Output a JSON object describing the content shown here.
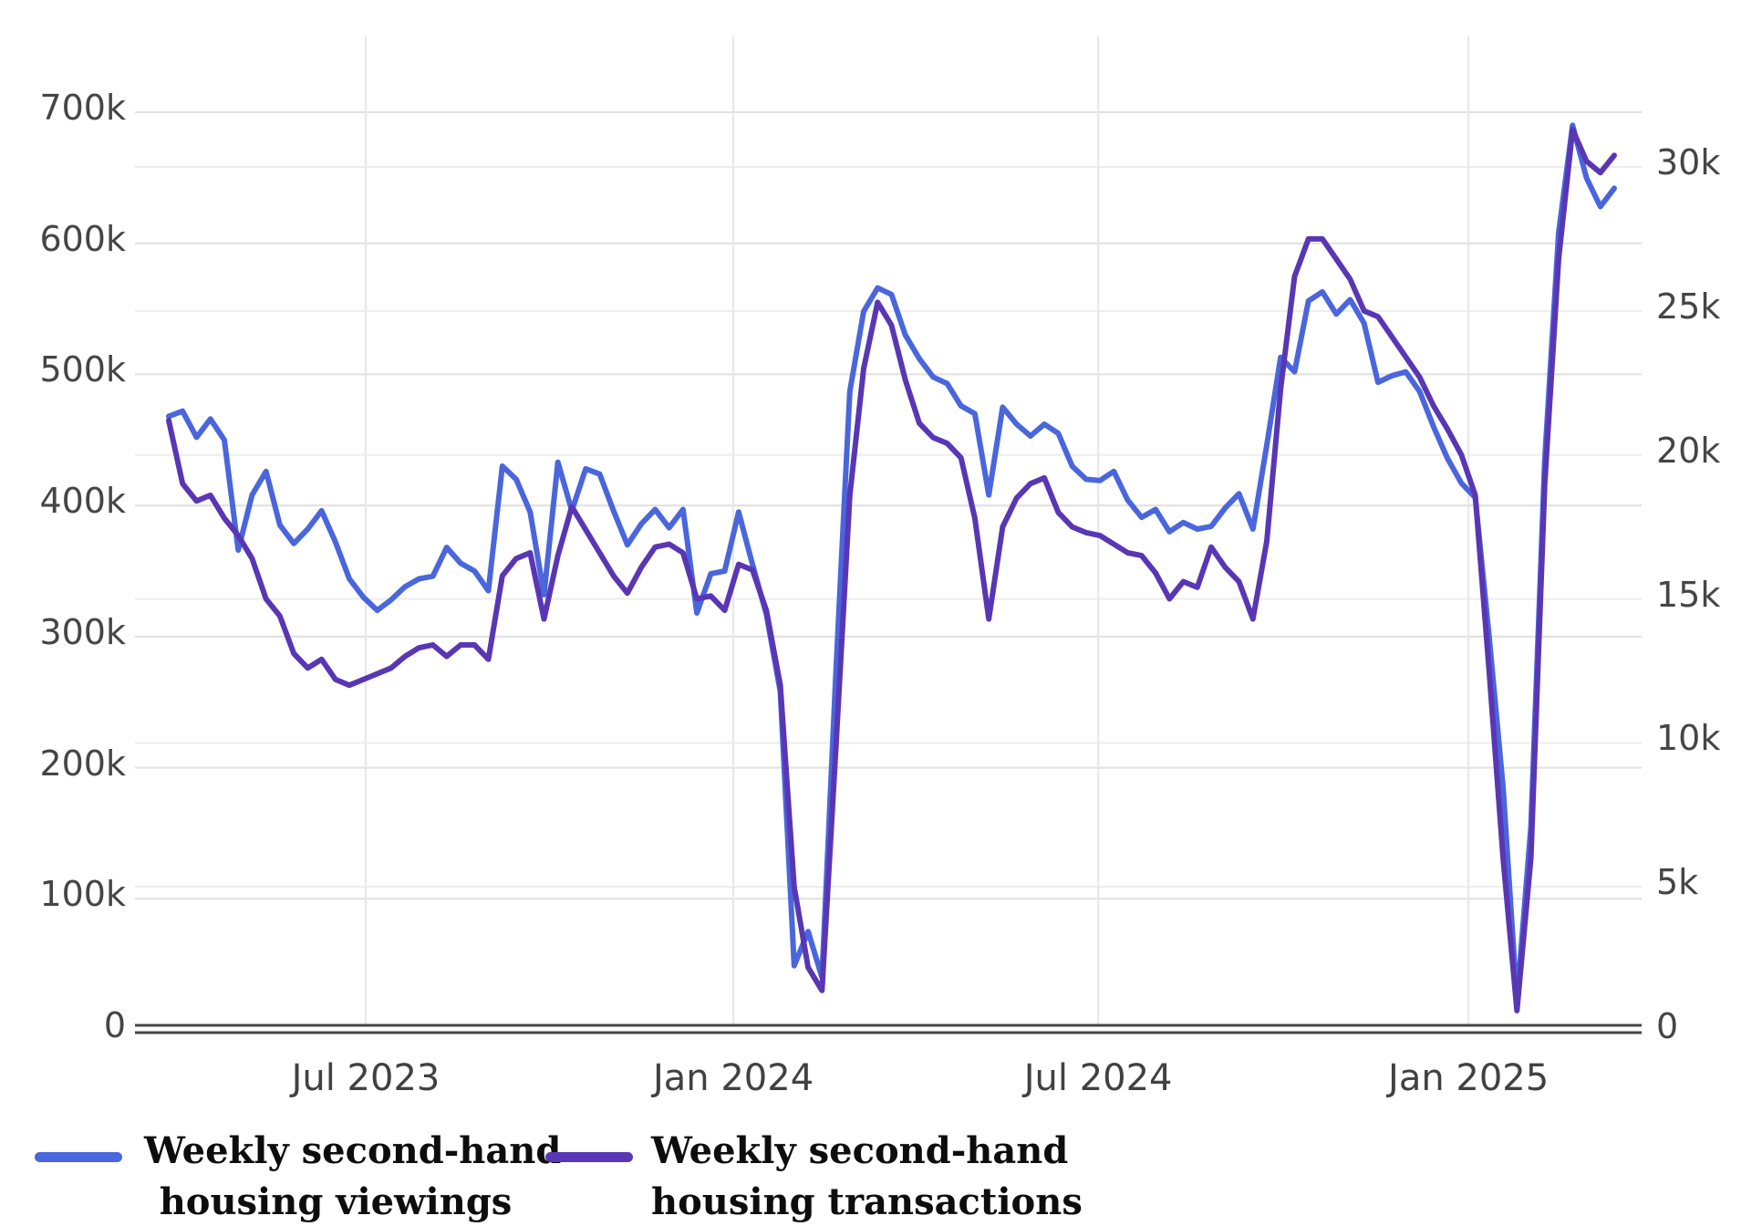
{
  "chart_data": {
    "type": "line",
    "title": "",
    "xlabel": "",
    "ylabel_left": "",
    "ylabel_right": "",
    "grid": true,
    "legend_position": "bottom",
    "x_unit": "week",
    "x_ticks": [
      {
        "label": "Jul 2023",
        "week": 14.17
      },
      {
        "label": "Jan 2024",
        "week": 40.62
      },
      {
        "label": "Jul 2024",
        "week": 66.87
      },
      {
        "label": "Jan 2025",
        "week": 93.51
      }
    ],
    "left_axis": {
      "min": 0,
      "max": 700000,
      "tick_labels": [
        "700k",
        "600k",
        "500k",
        "400k",
        "300k",
        "200k",
        "100k",
        "0"
      ],
      "tick_values": [
        700000,
        600000,
        500000,
        400000,
        300000,
        200000,
        100000,
        0
      ]
    },
    "right_axis": {
      "min": 0,
      "max": 31900,
      "tick_labels": [
        "30k",
        "25k",
        "20k",
        "15k",
        "10k",
        "5k",
        "0"
      ],
      "tick_values": [
        30000,
        25000,
        20000,
        15000,
        10000,
        5000,
        0
      ]
    },
    "series": [
      {
        "name": "Weekly second-hand housing viewings",
        "axis": "left",
        "color": "#4a66dd",
        "values": [
          468000,
          472000,
          452000,
          466000,
          450000,
          366000,
          408000,
          426000,
          385000,
          371000,
          382000,
          396000,
          372000,
          344000,
          330000,
          320000,
          328000,
          338000,
          344000,
          346000,
          368000,
          356000,
          350000,
          335000,
          430000,
          420000,
          395000,
          332000,
          433000,
          396000,
          428000,
          424000,
          396000,
          370000,
          386000,
          397000,
          383000,
          397000,
          318000,
          348000,
          350000,
          395000,
          355000,
          317000,
          258000,
          49000,
          75000,
          40000,
          272000,
          487000,
          548000,
          566000,
          561000,
          530000,
          512000,
          498000,
          493000,
          476000,
          470000,
          408000,
          475000,
          462000,
          453000,
          462000,
          455000,
          430000,
          420000,
          419000,
          426000,
          404000,
          391000,
          397000,
          380000,
          387000,
          382000,
          384000,
          398000,
          409000,
          382000,
          446000,
          513000,
          502000,
          556000,
          563000,
          546000,
          557000,
          539000,
          494000,
          499000,
          502000,
          487000,
          460000,
          436000,
          417000,
          406000,
          300000,
          185000,
          22000,
          155000,
          435000,
          608000,
          690000,
          650000,
          628000,
          642000
        ]
      },
      {
        "name": "Weekly second-hand housing transactions",
        "axis": "right",
        "color": "#5936b4",
        "values": [
          21200,
          19000,
          18400,
          18600,
          17800,
          17200,
          16400,
          15000,
          14400,
          13100,
          12600,
          12900,
          12200,
          12000,
          12200,
          12400,
          12600,
          13000,
          13300,
          13400,
          13000,
          13400,
          13400,
          12900,
          15800,
          16400,
          16600,
          14300,
          16500,
          18200,
          17400,
          16600,
          15800,
          15200,
          16100,
          16800,
          16900,
          16600,
          15000,
          15100,
          14600,
          16200,
          16000,
          14600,
          12000,
          5000,
          2200,
          1400,
          9800,
          18600,
          23000,
          25300,
          24500,
          22600,
          21100,
          20600,
          20400,
          19900,
          17800,
          14300,
          17500,
          18500,
          19000,
          19200,
          18000,
          17500,
          17300,
          17200,
          16900,
          16600,
          16500,
          15900,
          15000,
          15600,
          15400,
          16800,
          16100,
          15600,
          14300,
          17000,
          22300,
          26200,
          27500,
          27500,
          26800,
          26100,
          25000,
          24800,
          24100,
          23400,
          22700,
          21700,
          20900,
          20000,
          18600,
          12500,
          6000,
          700,
          6000,
          19000,
          26800,
          31300,
          30200,
          29800,
          30400
        ]
      }
    ]
  },
  "legend": {
    "entries": [
      {
        "line1": "Weekly second-hand",
        "line2": "housing viewings",
        "color": "#4a66dd"
      },
      {
        "line1": "Weekly second-hand",
        "line2": "housing transactions",
        "color": "#5936b4"
      }
    ]
  },
  "colors": {
    "grid_major": "#e0e0e0",
    "grid_minor": "#ededed",
    "axis_line": "#454545",
    "tick_text": "#454545",
    "background": "#ffffff"
  }
}
